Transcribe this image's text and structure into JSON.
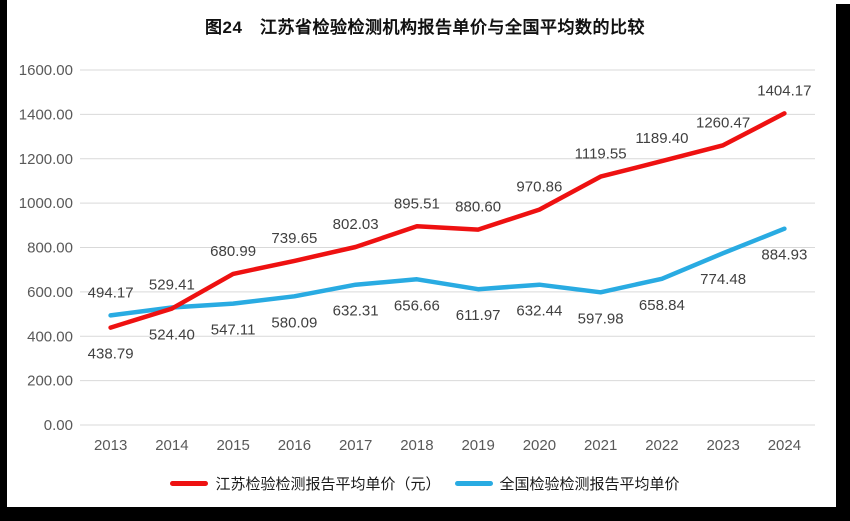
{
  "chart_data": {
    "type": "line",
    "title": "图24　江苏省检验检测机构报告单价与全国平均数的比较",
    "categories": [
      "2013",
      "2014",
      "2015",
      "2016",
      "2017",
      "2018",
      "2019",
      "2020",
      "2021",
      "2022",
      "2023",
      "2024"
    ],
    "series": [
      {
        "name": "江苏检验检测报告平均单价（元）",
        "color": "#ee1111",
        "values": [
          438.79,
          524.4,
          680.99,
          739.65,
          802.03,
          895.51,
          880.6,
          970.86,
          1119.55,
          1189.4,
          1260.47,
          1404.17
        ]
      },
      {
        "name": "全国检验检测报告平均单价",
        "color": "#29abe2",
        "values": [
          494.17,
          529.41,
          547.11,
          580.09,
          632.31,
          656.66,
          611.97,
          632.44,
          597.98,
          658.84,
          774.48,
          884.93
        ]
      }
    ],
    "ylim": [
      0,
      1600
    ],
    "ytick_step": 200,
    "yticks": [
      "0.00",
      "200.00",
      "400.00",
      "600.00",
      "800.00",
      "1000.00",
      "1200.00",
      "1400.00",
      "1600.00"
    ],
    "grid": true,
    "legend_position": "bottom",
    "data_labels": true,
    "label_format": "two decimals, higher series labeled above its point, lower series labeled below"
  },
  "colors": {
    "background": "#ffffff",
    "edge_bars": "#000000",
    "gridline": "#d9d9d9",
    "axis_text": "#595959",
    "data_label_text": "#404040",
    "title_text": "#111111",
    "legend_text": "#1a1a1a"
  }
}
